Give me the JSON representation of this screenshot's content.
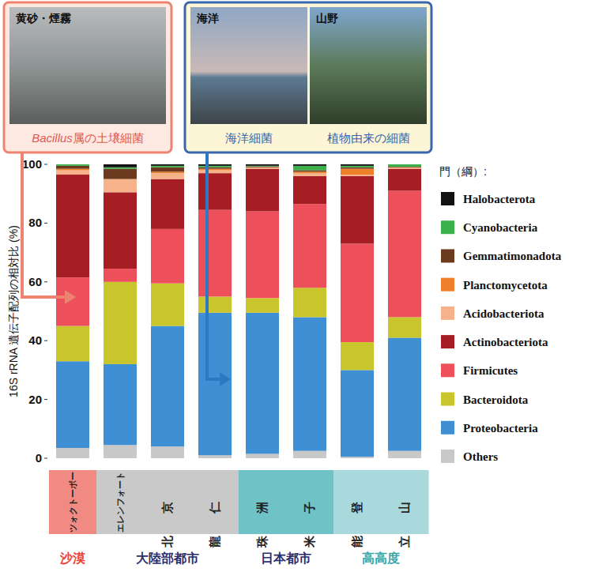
{
  "chart_data": {
    "type": "bar",
    "stacked": true,
    "y_label": "16S rRNA 遺伝子配列の相対比 (%)",
    "legend_title": "門（綱）:",
    "legend": "right",
    "ylim": [
      0,
      100
    ],
    "yticks": [
      0,
      20,
      40,
      60,
      80,
      100
    ],
    "categories": [
      "ツォクトーボー",
      "エレンフォート",
      "北京",
      "龍仁",
      "珠洲",
      "米子",
      "能登",
      "立山"
    ],
    "groups": [
      {
        "label": "沙漠",
        "members": [
          "ツォクトーボー"
        ],
        "color": "#e8453c"
      },
      {
        "label": "大陸部都市",
        "members": [
          "エレンフォート",
          "北京",
          "龍仁"
        ],
        "color": "#2b2f6e"
      },
      {
        "label": "日本都市",
        "members": [
          "珠洲",
          "米子"
        ],
        "color": "#2b2f6e"
      },
      {
        "label": "高高度",
        "members": [
          "能登",
          "立山"
        ],
        "color": "#35a6a8"
      }
    ],
    "annotations": [
      "黄砂・煙霧",
      "Bacillus属の土壌細菌",
      "海洋",
      "山野",
      "海洋細菌",
      "植物由来の細菌"
    ],
    "series": [
      {
        "name": "Others",
        "color": "#c8c8c8",
        "values": [
          3.5,
          4.5,
          4,
          1,
          1.5,
          2.5,
          0.5,
          2.5
        ]
      },
      {
        "name": "Proteobacteria",
        "color": "#3f8fd4",
        "values": [
          29.5,
          27.5,
          41,
          48.5,
          48,
          45.5,
          29.5,
          38.5
        ]
      },
      {
        "name": "Bacteroidota",
        "color": "#c9c52d",
        "values": [
          12,
          28,
          14.5,
          5.5,
          5,
          10,
          9.5,
          7
        ]
      },
      {
        "name": "Firmicutes",
        "color": "#ee505b",
        "values": [
          16.5,
          4.5,
          18.5,
          29.5,
          29.5,
          28.5,
          33.5,
          43
        ]
      },
      {
        "name": "Actinobacteriota",
        "color": "#a61e24",
        "values": [
          35,
          26,
          17,
          12.5,
          14.5,
          9.5,
          23,
          7.5
        ]
      },
      {
        "name": "Acidobacteriota",
        "color": "#f6b38b",
        "values": [
          1.5,
          4.5,
          2,
          1,
          0.3,
          1,
          0.5,
          0.3
        ]
      },
      {
        "name": "Planctomycetota",
        "color": "#f07f2a",
        "values": [
          0.5,
          0,
          0.5,
          0.5,
          0.2,
          0.5,
          2,
          0.2
        ]
      },
      {
        "name": "Gemmatimonadota",
        "color": "#6b3a1f",
        "values": [
          1,
          3.5,
          1.5,
          0.5,
          0.3,
          0.5,
          0.5,
          0.2
        ]
      },
      {
        "name": "Cyanobacteria",
        "color": "#3cb04a",
        "values": [
          0.5,
          0.5,
          0.5,
          0.5,
          0.2,
          1.5,
          0.5,
          0.8
        ]
      },
      {
        "name": "Halobacterota",
        "color": "#111111",
        "values": [
          0,
          1,
          0.5,
          0.5,
          0.5,
          0.5,
          0.5,
          0
        ]
      }
    ]
  }
}
